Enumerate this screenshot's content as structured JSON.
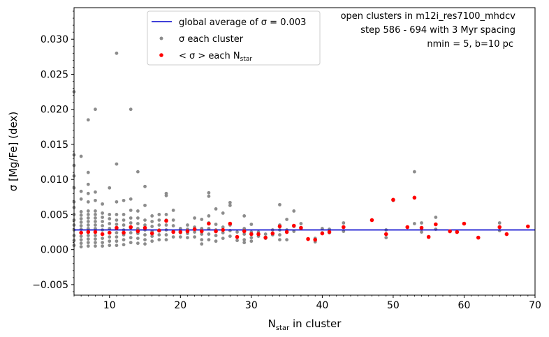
{
  "chart_data": {
    "type": "scatter",
    "xlabel": "N",
    "xlabel_sub": "star",
    "xlabel_rest": " in cluster",
    "ylabel": "σ [Mg/Fe] (dex)",
    "xlim": [
      5,
      70
    ],
    "ylim": [
      -0.0065,
      0.0345
    ],
    "x_ticks": [
      10,
      20,
      30,
      40,
      50,
      60,
      70
    ],
    "x_tick_labels": [
      "10",
      "20",
      "30",
      "40",
      "50",
      "60",
      "70"
    ],
    "y_ticks": [
      -0.005,
      0.0,
      0.005,
      0.01,
      0.015,
      0.02,
      0.025,
      0.03
    ],
    "y_tick_labels": [
      "−0.005",
      "0.000",
      "0.005",
      "0.010",
      "0.015",
      "0.020",
      "0.025",
      "0.030"
    ],
    "grid": false,
    "legend_position": "top-center",
    "annotations": [
      "open clusters in m12i_res7100_mhdcv",
      "step 586 - 694 with 3 Myr spacing",
      "nmin = 5, b=10 pc"
    ],
    "colors": {
      "grey": "#8c8c8c",
      "red": "#ff0000",
      "blue": "#0000cc"
    },
    "series": [
      {
        "name": "global average of σ = 0.003",
        "legend_label": "global average of σ = 0.003",
        "kind": "hline",
        "y": 0.0028
      },
      {
        "name": "σ each cluster",
        "legend_label": "σ each cluster",
        "kind": "points",
        "points": [
          [
            5,
            0.0225
          ],
          [
            5,
            0.0135
          ],
          [
            5,
            0.012
          ],
          [
            5,
            0.0105
          ],
          [
            5,
            0.0088
          ],
          [
            5,
            0.0068
          ],
          [
            5,
            0.006
          ],
          [
            5,
            0.005
          ],
          [
            5,
            0.0042
          ],
          [
            5,
            0.0035
          ],
          [
            5,
            0.0028
          ],
          [
            5,
            0.002
          ],
          [
            5,
            0.0013
          ],
          [
            5,
            0.0006
          ],
          [
            6,
            0.0133
          ],
          [
            6,
            0.0083
          ],
          [
            6,
            0.0072
          ],
          [
            6,
            0.0054
          ],
          [
            6,
            0.0049
          ],
          [
            6,
            0.0044
          ],
          [
            6,
            0.0039
          ],
          [
            6,
            0.0034
          ],
          [
            6,
            0.0029
          ],
          [
            6,
            0.0024
          ],
          [
            6,
            0.0019
          ],
          [
            6,
            0.0014
          ],
          [
            6,
            0.0009
          ],
          [
            6,
            0.0004
          ],
          [
            7,
            0.0185
          ],
          [
            7,
            0.011
          ],
          [
            7,
            0.0093
          ],
          [
            7,
            0.008
          ],
          [
            7,
            0.0068
          ],
          [
            7,
            0.0055
          ],
          [
            7,
            0.005
          ],
          [
            7,
            0.0045
          ],
          [
            7,
            0.004
          ],
          [
            7,
            0.0035
          ],
          [
            7,
            0.003
          ],
          [
            7,
            0.0025
          ],
          [
            7,
            0.002
          ],
          [
            7,
            0.0015
          ],
          [
            7,
            0.001
          ],
          [
            7,
            0.0005
          ],
          [
            8,
            0.02
          ],
          [
            8,
            0.0082
          ],
          [
            8,
            0.007
          ],
          [
            8,
            0.0055
          ],
          [
            8,
            0.005
          ],
          [
            8,
            0.0045
          ],
          [
            8,
            0.004
          ],
          [
            8,
            0.0035
          ],
          [
            8,
            0.003
          ],
          [
            8,
            0.0025
          ],
          [
            8,
            0.002
          ],
          [
            8,
            0.0015
          ],
          [
            8,
            0.001
          ],
          [
            8,
            0.0005
          ],
          [
            9,
            0.0065
          ],
          [
            9,
            0.0052
          ],
          [
            9,
            0.0046
          ],
          [
            9,
            0.004
          ],
          [
            9,
            0.0034
          ],
          [
            9,
            0.0028
          ],
          [
            9,
            0.0022
          ],
          [
            9,
            0.0016
          ],
          [
            9,
            0.001
          ],
          [
            9,
            0.0005
          ],
          [
            10,
            0.0088
          ],
          [
            10,
            0.005
          ],
          [
            10,
            0.0044
          ],
          [
            10,
            0.0037
          ],
          [
            10,
            0.003
          ],
          [
            10,
            0.0024
          ],
          [
            10,
            0.0018
          ],
          [
            10,
            0.0012
          ],
          [
            10,
            0.0006
          ],
          [
            11,
            0.028
          ],
          [
            11,
            0.0122
          ],
          [
            11,
            0.0068
          ],
          [
            11,
            0.005
          ],
          [
            11,
            0.0042
          ],
          [
            11,
            0.0036
          ],
          [
            11,
            0.003
          ],
          [
            11,
            0.0024
          ],
          [
            11,
            0.0018
          ],
          [
            11,
            0.0012
          ],
          [
            11,
            0.0006
          ],
          [
            12,
            0.007
          ],
          [
            12,
            0.005
          ],
          [
            12,
            0.0042
          ],
          [
            12,
            0.0035
          ],
          [
            12,
            0.0028
          ],
          [
            12,
            0.0021
          ],
          [
            12,
            0.0014
          ],
          [
            12,
            0.0007
          ],
          [
            13,
            0.02
          ],
          [
            13,
            0.0072
          ],
          [
            13,
            0.0056
          ],
          [
            13,
            0.0045
          ],
          [
            13,
            0.0038
          ],
          [
            13,
            0.0031
          ],
          [
            13,
            0.0024
          ],
          [
            13,
            0.0017
          ],
          [
            13,
            0.001
          ],
          [
            14,
            0.0111
          ],
          [
            14,
            0.0055
          ],
          [
            14,
            0.0045
          ],
          [
            14,
            0.0037
          ],
          [
            14,
            0.003
          ],
          [
            14,
            0.0023
          ],
          [
            14,
            0.0016
          ],
          [
            14,
            0.0009
          ],
          [
            15,
            0.009
          ],
          [
            15,
            0.0063
          ],
          [
            15,
            0.0042
          ],
          [
            15,
            0.0035
          ],
          [
            15,
            0.0028
          ],
          [
            15,
            0.0021
          ],
          [
            15,
            0.0014
          ],
          [
            15,
            0.0008
          ],
          [
            16,
            0.0048
          ],
          [
            16,
            0.004
          ],
          [
            16,
            0.0033
          ],
          [
            16,
            0.0026
          ],
          [
            16,
            0.0019
          ],
          [
            16,
            0.0012
          ],
          [
            17,
            0.005
          ],
          [
            17,
            0.0042
          ],
          [
            17,
            0.0035
          ],
          [
            17,
            0.0028
          ],
          [
            17,
            0.0021
          ],
          [
            17,
            0.0014
          ],
          [
            18,
            0.008
          ],
          [
            18,
            0.0077
          ],
          [
            18,
            0.005
          ],
          [
            18,
            0.0042
          ],
          [
            18,
            0.0035
          ],
          [
            18,
            0.0028
          ],
          [
            18,
            0.0021
          ],
          [
            18,
            0.0014
          ],
          [
            19,
            0.0056
          ],
          [
            19,
            0.0042
          ],
          [
            19,
            0.0034
          ],
          [
            19,
            0.0026
          ],
          [
            19,
            0.0018
          ],
          [
            20,
            0.003
          ],
          [
            20,
            0.0024
          ],
          [
            20,
            0.0018
          ],
          [
            21,
            0.0035
          ],
          [
            21,
            0.0029
          ],
          [
            21,
            0.0023
          ],
          [
            21,
            0.0017
          ],
          [
            22,
            0.0045
          ],
          [
            22,
            0.0032
          ],
          [
            22,
            0.0025
          ],
          [
            22,
            0.0018
          ],
          [
            23,
            0.0043
          ],
          [
            23,
            0.003
          ],
          [
            23,
            0.0022
          ],
          [
            23,
            0.0014
          ],
          [
            23,
            0.0008
          ],
          [
            24,
            0.0081
          ],
          [
            24,
            0.0076
          ],
          [
            24,
            0.0048
          ],
          [
            24,
            0.0038
          ],
          [
            24,
            0.003
          ],
          [
            24,
            0.0022
          ],
          [
            24,
            0.0014
          ],
          [
            25,
            0.0058
          ],
          [
            25,
            0.0036
          ],
          [
            25,
            0.0028
          ],
          [
            25,
            0.002
          ],
          [
            25,
            0.0012
          ],
          [
            26,
            0.0052
          ],
          [
            26,
            0.0032
          ],
          [
            26,
            0.0024
          ],
          [
            26,
            0.0016
          ],
          [
            27,
            0.0067
          ],
          [
            27,
            0.0063
          ],
          [
            27,
            0.0035
          ],
          [
            27,
            0.0027
          ],
          [
            27,
            0.0019
          ],
          [
            28,
            0.0025
          ],
          [
            28,
            0.0018
          ],
          [
            28,
            0.0013
          ],
          [
            29,
            0.0048
          ],
          [
            29,
            0.003
          ],
          [
            29,
            0.0022
          ],
          [
            29,
            0.0014
          ],
          [
            29,
            0.001
          ],
          [
            30,
            0.0036
          ],
          [
            30,
            0.0025
          ],
          [
            30,
            0.0017
          ],
          [
            30,
            0.0012
          ],
          [
            31,
            0.0025
          ],
          [
            31,
            0.0019
          ],
          [
            32,
            0.0022
          ],
          [
            32,
            0.0016
          ],
          [
            33,
            0.0028
          ],
          [
            33,
            0.0021
          ],
          [
            34,
            0.0064
          ],
          [
            34,
            0.0035
          ],
          [
            34,
            0.0028
          ],
          [
            34,
            0.0021
          ],
          [
            34,
            0.0014
          ],
          [
            35,
            0.0043
          ],
          [
            35,
            0.0028
          ],
          [
            35,
            0.0014
          ],
          [
            36,
            0.0055
          ],
          [
            36,
            0.0033
          ],
          [
            36,
            0.0026
          ],
          [
            37,
            0.0037
          ],
          [
            37,
            0.003
          ],
          [
            38,
            0.0015
          ],
          [
            39,
            0.0016
          ],
          [
            39,
            0.0011
          ],
          [
            40,
            0.003
          ],
          [
            40,
            0.0024
          ],
          [
            41,
            0.0029
          ],
          [
            41,
            0.0024
          ],
          [
            43,
            0.0038
          ],
          [
            43,
            0.0026
          ],
          [
            47,
            0.0042
          ],
          [
            49,
            0.0028
          ],
          [
            49,
            0.0017
          ],
          [
            50,
            0.007
          ],
          [
            52,
            0.0032
          ],
          [
            53,
            0.0111
          ],
          [
            53,
            0.0037
          ],
          [
            54,
            0.0038
          ],
          [
            54,
            0.0025
          ],
          [
            55,
            0.0018
          ],
          [
            56,
            0.0046
          ],
          [
            56,
            0.0029
          ],
          [
            58,
            0.0026
          ],
          [
            59,
            0.0025
          ],
          [
            60,
            0.0037
          ],
          [
            62,
            0.0017
          ],
          [
            65,
            0.0038
          ],
          [
            65,
            0.0027
          ],
          [
            66,
            0.0022
          ],
          [
            69,
            0.0033
          ]
        ]
      },
      {
        "name": "< σ > each N",
        "legend_label": "< σ > each N",
        "legend_sub": "star",
        "kind": "points",
        "points": [
          [
            6,
            0.0024
          ],
          [
            7,
            0.0025
          ],
          [
            8,
            0.0025
          ],
          [
            9,
            0.0022
          ],
          [
            10,
            0.0024
          ],
          [
            11,
            0.0031
          ],
          [
            12,
            0.0024
          ],
          [
            13,
            0.0032
          ],
          [
            14,
            0.0026
          ],
          [
            15,
            0.0031
          ],
          [
            16,
            0.0023
          ],
          [
            17,
            0.0027
          ],
          [
            18,
            0.0041
          ],
          [
            19,
            0.0025
          ],
          [
            20,
            0.0025
          ],
          [
            21,
            0.0026
          ],
          [
            22,
            0.0029
          ],
          [
            23,
            0.0026
          ],
          [
            24,
            0.0037
          ],
          [
            25,
            0.0026
          ],
          [
            26,
            0.0028
          ],
          [
            27,
            0.0037
          ],
          [
            28,
            0.0018
          ],
          [
            29,
            0.0026
          ],
          [
            30,
            0.0022
          ],
          [
            31,
            0.0022
          ],
          [
            32,
            0.0017
          ],
          [
            33,
            0.0023
          ],
          [
            34,
            0.0033
          ],
          [
            35,
            0.0025
          ],
          [
            36,
            0.0034
          ],
          [
            37,
            0.0031
          ],
          [
            38,
            0.0015
          ],
          [
            39,
            0.0014
          ],
          [
            40,
            0.0023
          ],
          [
            41,
            0.0025
          ],
          [
            43,
            0.0032
          ],
          [
            47,
            0.0042
          ],
          [
            49,
            0.0022
          ],
          [
            50,
            0.0071
          ],
          [
            52,
            0.0032
          ],
          [
            53,
            0.0074
          ],
          [
            54,
            0.0031
          ],
          [
            55,
            0.0018
          ],
          [
            56,
            0.0036
          ],
          [
            58,
            0.0026
          ],
          [
            59,
            0.0025
          ],
          [
            60,
            0.0037
          ],
          [
            62,
            0.0017
          ],
          [
            65,
            0.0032
          ],
          [
            66,
            0.0022
          ],
          [
            69,
            0.0033
          ]
        ]
      }
    ]
  }
}
